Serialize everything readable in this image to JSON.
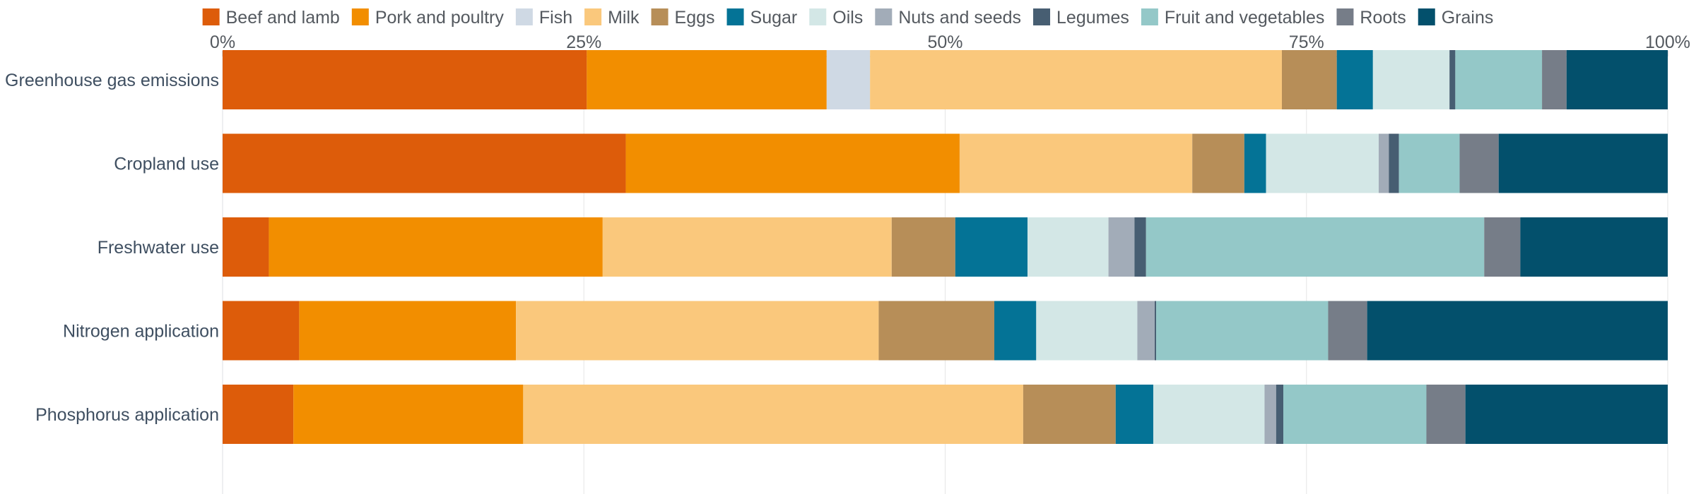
{
  "chart_data": {
    "type": "bar",
    "orientation": "horizontal",
    "stacked": true,
    "percent_stacked": true,
    "title": "",
    "xlabel": "",
    "ylabel": "",
    "xlim": [
      0,
      100
    ],
    "x_ticks": [
      "0%",
      "25%",
      "50%",
      "75%",
      "100%"
    ],
    "x_tick_values": [
      0,
      25,
      50,
      75,
      100
    ],
    "x_axis_position": "top",
    "legend_position": "top",
    "grid": true,
    "categories": [
      "Greenhouse gas emissions",
      "Cropland use",
      "Freshwater use",
      "Nitrogen application",
      "Phosphorus application"
    ],
    "series": [
      {
        "name": "Beef and lamb",
        "color": "#dd5c0a",
        "values": [
          25.2,
          27.9,
          3.2,
          5.3,
          4.9
        ]
      },
      {
        "name": "Pork and poultry",
        "color": "#f28e00",
        "values": [
          16.6,
          23.1,
          23.1,
          15.0,
          15.9
        ]
      },
      {
        "name": "Fish",
        "color": "#cfd9e4",
        "values": [
          3.0,
          0.0,
          0.0,
          0.0,
          0.0
        ]
      },
      {
        "name": "Milk",
        "color": "#fac87c",
        "values": [
          28.5,
          16.1,
          20.0,
          25.1,
          34.6
        ]
      },
      {
        "name": "Eggs",
        "color": "#b78e58",
        "values": [
          3.8,
          3.6,
          4.4,
          8.0,
          6.4
        ]
      },
      {
        "name": "Sugar",
        "color": "#047396",
        "values": [
          2.5,
          1.5,
          5.0,
          2.9,
          2.6
        ]
      },
      {
        "name": "Oils",
        "color": "#d3e7e6",
        "values": [
          5.3,
          7.8,
          5.6,
          7.0,
          7.7
        ]
      },
      {
        "name": "Nuts and seeds",
        "color": "#a2acb8",
        "values": [
          0.0,
          0.7,
          1.8,
          1.2,
          0.8
        ]
      },
      {
        "name": "Legumes",
        "color": "#475e72",
        "values": [
          0.4,
          0.7,
          0.8,
          0.1,
          0.5
        ]
      },
      {
        "name": "Fruit and vegetables",
        "color": "#94c8c8",
        "values": [
          6.0,
          4.2,
          23.4,
          11.9,
          9.9
        ]
      },
      {
        "name": "Roots",
        "color": "#767d88",
        "values": [
          1.7,
          2.7,
          2.5,
          2.7,
          2.7
        ]
      },
      {
        "name": "Grains",
        "color": "#03506c",
        "values": [
          7.0,
          11.7,
          10.2,
          20.8,
          14.0
        ]
      }
    ]
  }
}
